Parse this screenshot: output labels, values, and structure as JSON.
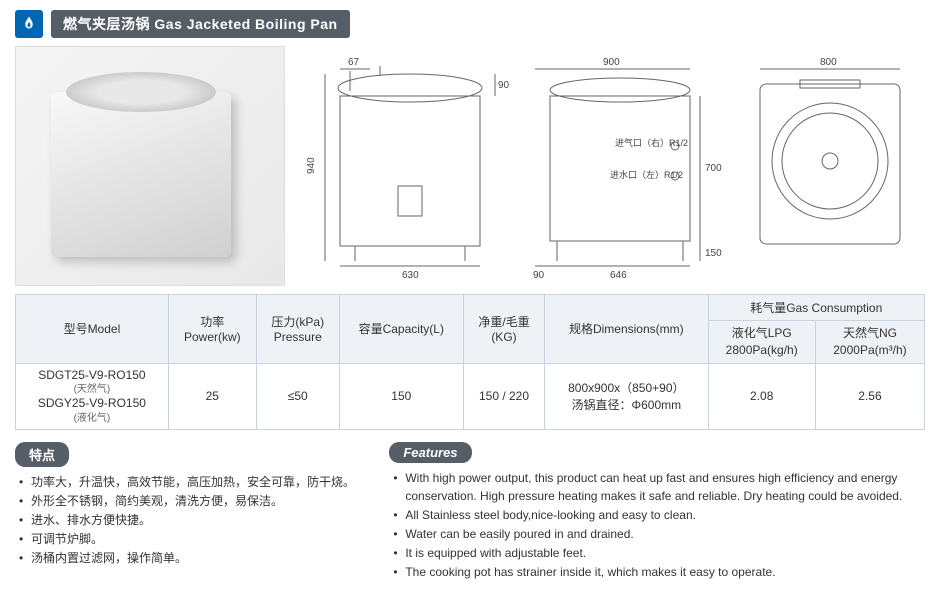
{
  "header": {
    "title": "燃气夹层汤锅 Gas Jacketed Boiling Pan"
  },
  "diagrams": {
    "dims": {
      "front_w": "630",
      "front_h": "940",
      "top_gap": "67",
      "left_gap": "90",
      "side_w": "646",
      "side_gap": "90",
      "side_foot": "150",
      "side_h": "700",
      "top_w": "900",
      "plan_w": "800",
      "inlet_gas": "进气口（右）R1/2",
      "inlet_water": "进水口（左）R1/2"
    }
  },
  "table": {
    "headers": {
      "model": "型号Model",
      "power": "功率\nPower(kw)",
      "pressure": "压力(kPa)\nPressure",
      "capacity": "容量Capacity(L)",
      "weight": "净重/毛重\n(KG)",
      "dimensions": "规格Dimensions(mm)",
      "gas": "耗气量Gas Consumption"
    },
    "row": {
      "model_line1": "SDGT25-V9-RO150",
      "model_sub1": "(天然气)",
      "model_line2": "SDGY25-V9-RO150",
      "model_sub2": "(液化气)",
      "power": "25",
      "pressure": "≤50",
      "capacity": "150",
      "weight": "150 / 220",
      "dimensions_l1": "800x900x（850+90）",
      "dimensions_l2": "汤锅直径：Φ600mm",
      "gas_lpg_label": "液化气LPG",
      "gas_lpg_unit": "2800Pa(kg/h)",
      "gas_lpg_val": "2.08",
      "gas_ng_label": "天然气NG",
      "gas_ng_unit": "2000Pa(m³/h)",
      "gas_ng_val": "2.56"
    }
  },
  "features": {
    "cn_title": "特点",
    "en_title": "Features",
    "cn": [
      "功率大，升温快，高效节能，高压加热，安全可靠，防干烧。",
      "外形全不锈钢，简约美观，清洗方便，易保洁。",
      "进水、排水方便快捷。",
      "可调节炉脚。",
      "汤桶内置过滤网，操作简单。"
    ],
    "en": [
      "With high power output, this product can heat up fast and ensures high efficiency and energy conservation. High pressure heating makes it safe and reliable. Dry heating could be avoided.",
      "All Stainless steel body,nice-looking and easy to clean.",
      "Water can be easily poured in and drained.",
      "It is equipped with adjustable feet.",
      "The cooking pot has strainer inside it, which makes it easy to operate."
    ]
  },
  "colors": {
    "brand": "#0066b3",
    "bar": "#555d66",
    "th_bg": "#eef2f6",
    "border": "#c9d3de"
  }
}
